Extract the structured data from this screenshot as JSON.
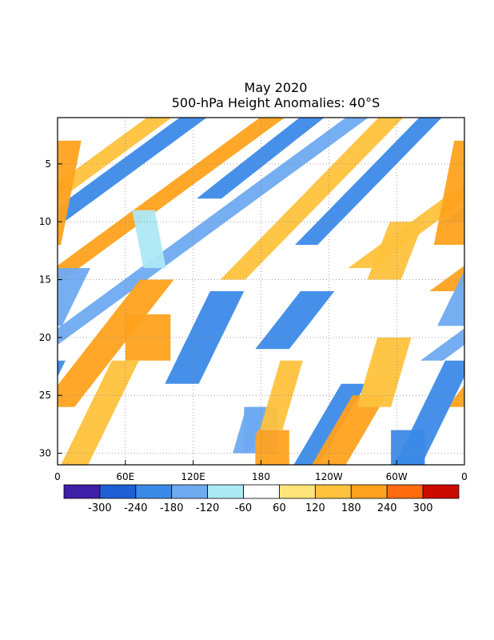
{
  "chart_data": {
    "type": "heatmap",
    "title": "May 2020",
    "subtitle": "500-hPa Height Anomalies: 40°S",
    "xlabel": "",
    "ylabel": "",
    "x_ticks": [
      "0",
      "60E",
      "120E",
      "180",
      "120W",
      "60W",
      "0"
    ],
    "x_range_deg_east": [
      0,
      360
    ],
    "y_ticks": [
      5,
      10,
      15,
      20,
      25,
      30
    ],
    "y_range": [
      1,
      31
    ],
    "y_axis_inverted": true,
    "grid": "dotted",
    "zero_contour_label": "0",
    "colorbar": {
      "tick_labels": [
        "-300",
        "-240",
        "-180",
        "-120",
        "-60",
        "60",
        "120",
        "180",
        "240",
        "300"
      ],
      "colors": [
        "#3d1fa8",
        "#1e5fd6",
        "#3c8ae8",
        "#6eaaf0",
        "#ade8f5",
        "#ffffff",
        "#ffe47a",
        "#ffc23c",
        "#ffa21e",
        "#ff6b0f",
        "#cc0a00"
      ]
    },
    "bands": [
      {
        "anomaly": 150,
        "lon_day1": 90,
        "slope_deg_per_day": -14,
        "width_deg": 22,
        "day_start": 1,
        "day_end": 14
      },
      {
        "anomaly": -200,
        "lon_day1": 120,
        "slope_deg_per_day": -14,
        "width_deg": 24,
        "day_start": 1,
        "day_end": 10
      },
      {
        "anomaly": 200,
        "lon_day1": 190,
        "slope_deg_per_day": -14,
        "width_deg": 22,
        "day_start": 1,
        "day_end": 16
      },
      {
        "anomaly": -220,
        "lon_day1": 225,
        "slope_deg_per_day": -13,
        "width_deg": 22,
        "day_start": 1,
        "day_end": 8
      },
      {
        "anomaly": -170,
        "lon_day1": 265,
        "slope_deg_per_day": -14,
        "width_deg": 20,
        "day_start": 1,
        "day_end": 22
      },
      {
        "anomaly": 150,
        "lon_day1": 295,
        "slope_deg_per_day": -10,
        "width_deg": 22,
        "day_start": 1,
        "day_end": 15
      },
      {
        "anomaly": -180,
        "lon_day1": 330,
        "slope_deg_per_day": -10,
        "width_deg": 20,
        "day_start": 1,
        "day_end": 12
      },
      {
        "anomaly": 200,
        "lon_day1": 10,
        "slope_deg_per_day": -2,
        "width_deg": 30,
        "day_start": 3,
        "day_end": 12
      },
      {
        "anomaly": -100,
        "lon_day1": 60,
        "slope_deg_per_day": 2,
        "width_deg": 20,
        "day_start": 9,
        "day_end": 14
      },
      {
        "anomaly": -130,
        "lon_day1": 80,
        "slope_deg_per_day": -5,
        "width_deg": 28,
        "day_start": 14,
        "day_end": 19
      },
      {
        "anomaly": 220,
        "lon_day1": 80,
        "slope_deg_per_day": 0,
        "width_deg": 40,
        "day_start": 18,
        "day_end": 22
      },
      {
        "anomaly": 220,
        "lon_day1": 200,
        "slope_deg_per_day": -8,
        "width_deg": 30,
        "day_start": 15,
        "day_end": 26
      },
      {
        "anomaly": -200,
        "lon_day1": 225,
        "slope_deg_per_day": -5,
        "width_deg": 30,
        "day_start": 16,
        "day_end": 24
      },
      {
        "anomaly": -180,
        "lon_day1": 350,
        "slope_deg_per_day": -8,
        "width_deg": 30,
        "day_start": 16,
        "day_end": 21
      },
      {
        "anomaly": -180,
        "lon_day1": 40,
        "slope_deg_per_day": -6,
        "width_deg": 22,
        "day_start": 24,
        "day_end": 31
      },
      {
        "anomaly": 200,
        "lon_day1": 60,
        "slope_deg_per_day": -6,
        "width_deg": 30,
        "day_start": 25,
        "day_end": 31
      },
      {
        "anomaly": -200,
        "lon_day1": 100,
        "slope_deg_per_day": -5,
        "width_deg": 24,
        "day_start": 22,
        "day_end": 31
      },
      {
        "anomaly": 160,
        "lon_day1": 165,
        "slope_deg_per_day": -5,
        "width_deg": 24,
        "day_start": 22,
        "day_end": 31
      },
      {
        "anomaly": -150,
        "lon_day1": 180,
        "slope_deg_per_day": 0,
        "width_deg": 30,
        "day_start": 26,
        "day_end": 30
      },
      {
        "anomaly": 200,
        "lon_day1": 190,
        "slope_deg_per_day": 0,
        "width_deg": 30,
        "day_start": 28,
        "day_end": 31
      },
      {
        "anomaly": -160,
        "lon_day1": 250,
        "slope_deg_per_day": -3,
        "width_deg": 16,
        "day_start": 26,
        "day_end": 30
      },
      {
        "anomaly": 160,
        "lon_day1": 270,
        "slope_deg_per_day": -3,
        "width_deg": 20,
        "day_start": 22,
        "day_end": 28
      },
      {
        "anomaly": -190,
        "lon_day1": 310,
        "slope_deg_per_day": 0,
        "width_deg": 30,
        "day_start": 28,
        "day_end": 31
      },
      {
        "anomaly": 180,
        "lon_day1": 355,
        "slope_deg_per_day": -3,
        "width_deg": 30,
        "day_start": 20,
        "day_end": 26
      },
      {
        "anomaly": 140,
        "lon_day1": 345,
        "slope_deg_per_day": -4,
        "width_deg": 30,
        "day_start": 10,
        "day_end": 15
      }
    ]
  }
}
